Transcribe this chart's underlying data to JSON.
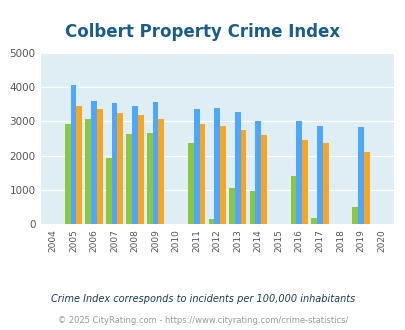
{
  "title": "Colbert Property Crime Index",
  "years": [
    2004,
    2005,
    2006,
    2007,
    2008,
    2009,
    2010,
    2011,
    2012,
    2013,
    2014,
    2015,
    2016,
    2017,
    2018,
    2019,
    2020
  ],
  "colbert": [
    0,
    2920,
    3080,
    1940,
    2620,
    2650,
    0,
    2360,
    150,
    1050,
    960,
    0,
    1420,
    180,
    0,
    500,
    0
  ],
  "oklahoma": [
    0,
    4050,
    3600,
    3540,
    3440,
    3560,
    0,
    3350,
    3400,
    3280,
    3010,
    0,
    3010,
    2880,
    0,
    2840,
    0
  ],
  "national": [
    0,
    3440,
    3350,
    3260,
    3200,
    3060,
    0,
    2920,
    2880,
    2740,
    2610,
    0,
    2460,
    2360,
    0,
    2120,
    0
  ],
  "colbert_color": "#8dc63f",
  "oklahoma_color": "#4da6ff",
  "national_color": "#f5a623",
  "bg_color": "#deeef4",
  "ylim": [
    0,
    5000
  ],
  "bar_width": 0.28,
  "xlabel_fontsize": 6.5,
  "ylabel_fontsize": 7.5,
  "title_fontsize": 12,
  "legend_fontsize": 8.5,
  "footer1": "Crime Index corresponds to incidents per 100,000 inhabitants",
  "footer2": "© 2025 CityRating.com - https://www.cityrating.com/crime-statistics/",
  "grid_color": "#ffffff",
  "title_color": "#1a5c8a",
  "footer1_color": "#1a3a5c",
  "footer2_color": "#888888",
  "url_color": "#4477aa"
}
